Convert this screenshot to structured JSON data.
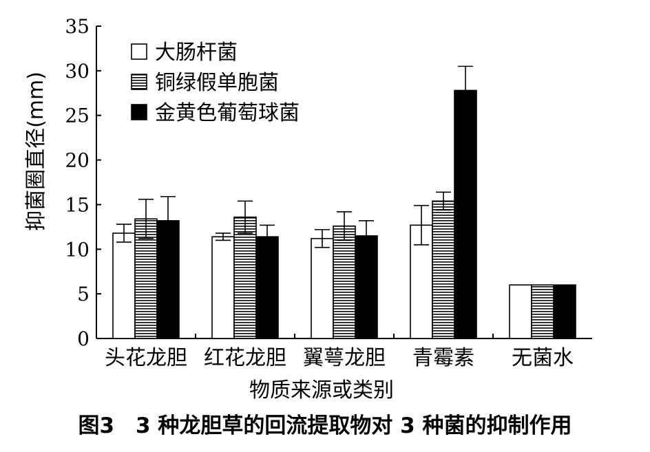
{
  "caption": "图3　3 种龙胆草的回流提取物对 3 种菌的抑制作用",
  "chart_data": {
    "type": "bar",
    "xlabel": "物质来源或类别",
    "ylabel": "抑菌圈直径(mm)",
    "ylim": [
      0,
      35
    ],
    "yticks": [
      0,
      5,
      10,
      15,
      20,
      25,
      30,
      35
    ],
    "categories": [
      "头花龙胆",
      "红花龙胆",
      "翼萼龙胆",
      "青霉素",
      "无菌水"
    ],
    "legend_position": "top-left",
    "series": [
      {
        "name": "大肠杆菌",
        "fill": "white",
        "values": [
          11.8,
          11.4,
          11.2,
          12.7,
          6.0
        ],
        "errors": [
          1.0,
          0.4,
          1.0,
          2.2,
          0
        ]
      },
      {
        "name": "铜绿假单胞菌",
        "fill": "hatch",
        "values": [
          13.4,
          13.6,
          12.6,
          15.4,
          6.0
        ],
        "errors": [
          2.2,
          1.8,
          1.6,
          1.0,
          0
        ]
      },
      {
        "name": "金黄色葡萄球菌",
        "fill": "black",
        "values": [
          13.2,
          11.4,
          11.5,
          27.8,
          6.0
        ],
        "errors": [
          2.7,
          1.3,
          1.7,
          2.7,
          0
        ]
      }
    ]
  }
}
